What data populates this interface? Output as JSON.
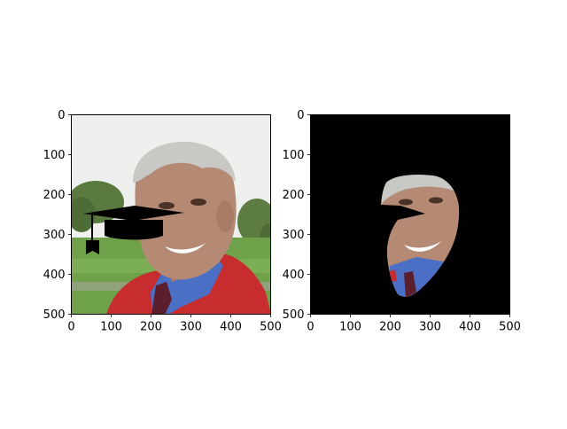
{
  "chart_data": [
    {
      "type": "image",
      "image_content": "photo of smiling elderly man with grey hair, red blazer, blue shirt, outdoor trees background, black graduation cap overlay",
      "xlim": [
        0,
        500
      ],
      "ylim": [
        500,
        0
      ],
      "x_ticks": [
        "0",
        "100",
        "200",
        "300",
        "400",
        "500"
      ],
      "y_ticks": [
        "0",
        "100",
        "200",
        "300",
        "400",
        "500"
      ],
      "grid": false
    },
    {
      "type": "image",
      "image_content": "segmented face of the man on black background with graduation cap cut-out",
      "xlim": [
        0,
        500
      ],
      "ylim": [
        500,
        0
      ],
      "x_ticks": [
        "0",
        "100",
        "200",
        "300",
        "400",
        "500"
      ],
      "y_ticks": [
        "0",
        "100",
        "200",
        "300",
        "400",
        "500"
      ],
      "grid": false
    }
  ],
  "colors": {
    "axis": "#000000",
    "background": "#ffffff",
    "mask_background": "#000000",
    "sky": "#eef0ee",
    "trees": "#5b7a3f",
    "grass": "#6fa04a",
    "skin": "#b48a74",
    "hair": "#c8c8c4",
    "jacket": "#c72c2e",
    "shirt": "#4b6fc5",
    "cap": "#000000"
  }
}
